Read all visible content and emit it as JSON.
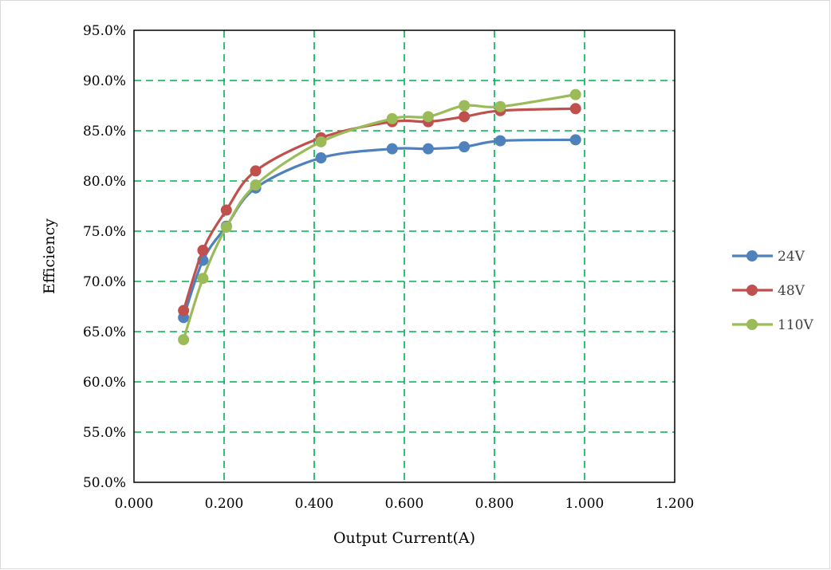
{
  "chart_data": {
    "type": "line",
    "title": "",
    "xlabel": "Output Current(A)",
    "ylabel": "Efficiency",
    "xlim": [
      0,
      1.2
    ],
    "ylim": [
      0.5,
      0.95
    ],
    "x_ticks": [
      "0.000",
      "0.200",
      "0.400",
      "0.600",
      "0.800",
      "1.000",
      "1.200"
    ],
    "y_ticks": [
      "50.0%",
      "55.0%",
      "60.0%",
      "65.0%",
      "70.0%",
      "75.0%",
      "80.0%",
      "85.0%",
      "90.0%",
      "95.0%"
    ],
    "grid": true,
    "grid_style": "dashed",
    "grid_color": "#00b050",
    "legend_position": "right",
    "series": [
      {
        "name": "24V",
        "color": "#4f81bd",
        "points": [
          {
            "x": 0.11,
            "y": 0.664
          },
          {
            "x": 0.153,
            "y": 0.721
          },
          {
            "x": 0.205,
            "y": 0.755
          },
          {
            "x": 0.27,
            "y": 0.793
          },
          {
            "x": 0.415,
            "y": 0.823
          },
          {
            "x": 0.573,
            "y": 0.832
          },
          {
            "x": 0.653,
            "y": 0.832
          },
          {
            "x": 0.733,
            "y": 0.834
          },
          {
            "x": 0.813,
            "y": 0.84
          },
          {
            "x": 0.98,
            "y": 0.841
          }
        ]
      },
      {
        "name": "48V",
        "color": "#c0504d",
        "points": [
          {
            "x": 0.11,
            "y": 0.671
          },
          {
            "x": 0.153,
            "y": 0.731
          },
          {
            "x": 0.205,
            "y": 0.771
          },
          {
            "x": 0.27,
            "y": 0.81
          },
          {
            "x": 0.415,
            "y": 0.843
          },
          {
            "x": 0.573,
            "y": 0.859
          },
          {
            "x": 0.653,
            "y": 0.859
          },
          {
            "x": 0.733,
            "y": 0.864
          },
          {
            "x": 0.813,
            "y": 0.87
          },
          {
            "x": 0.98,
            "y": 0.872
          }
        ]
      },
      {
        "name": "110V",
        "color": "#9bbb59",
        "points": [
          {
            "x": 0.11,
            "y": 0.642
          },
          {
            "x": 0.153,
            "y": 0.703
          },
          {
            "x": 0.205,
            "y": 0.754
          },
          {
            "x": 0.27,
            "y": 0.796
          },
          {
            "x": 0.415,
            "y": 0.839
          },
          {
            "x": 0.573,
            "y": 0.862
          },
          {
            "x": 0.653,
            "y": 0.864
          },
          {
            "x": 0.733,
            "y": 0.875
          },
          {
            "x": 0.813,
            "y": 0.874
          },
          {
            "x": 0.98,
            "y": 0.886
          }
        ]
      }
    ]
  }
}
